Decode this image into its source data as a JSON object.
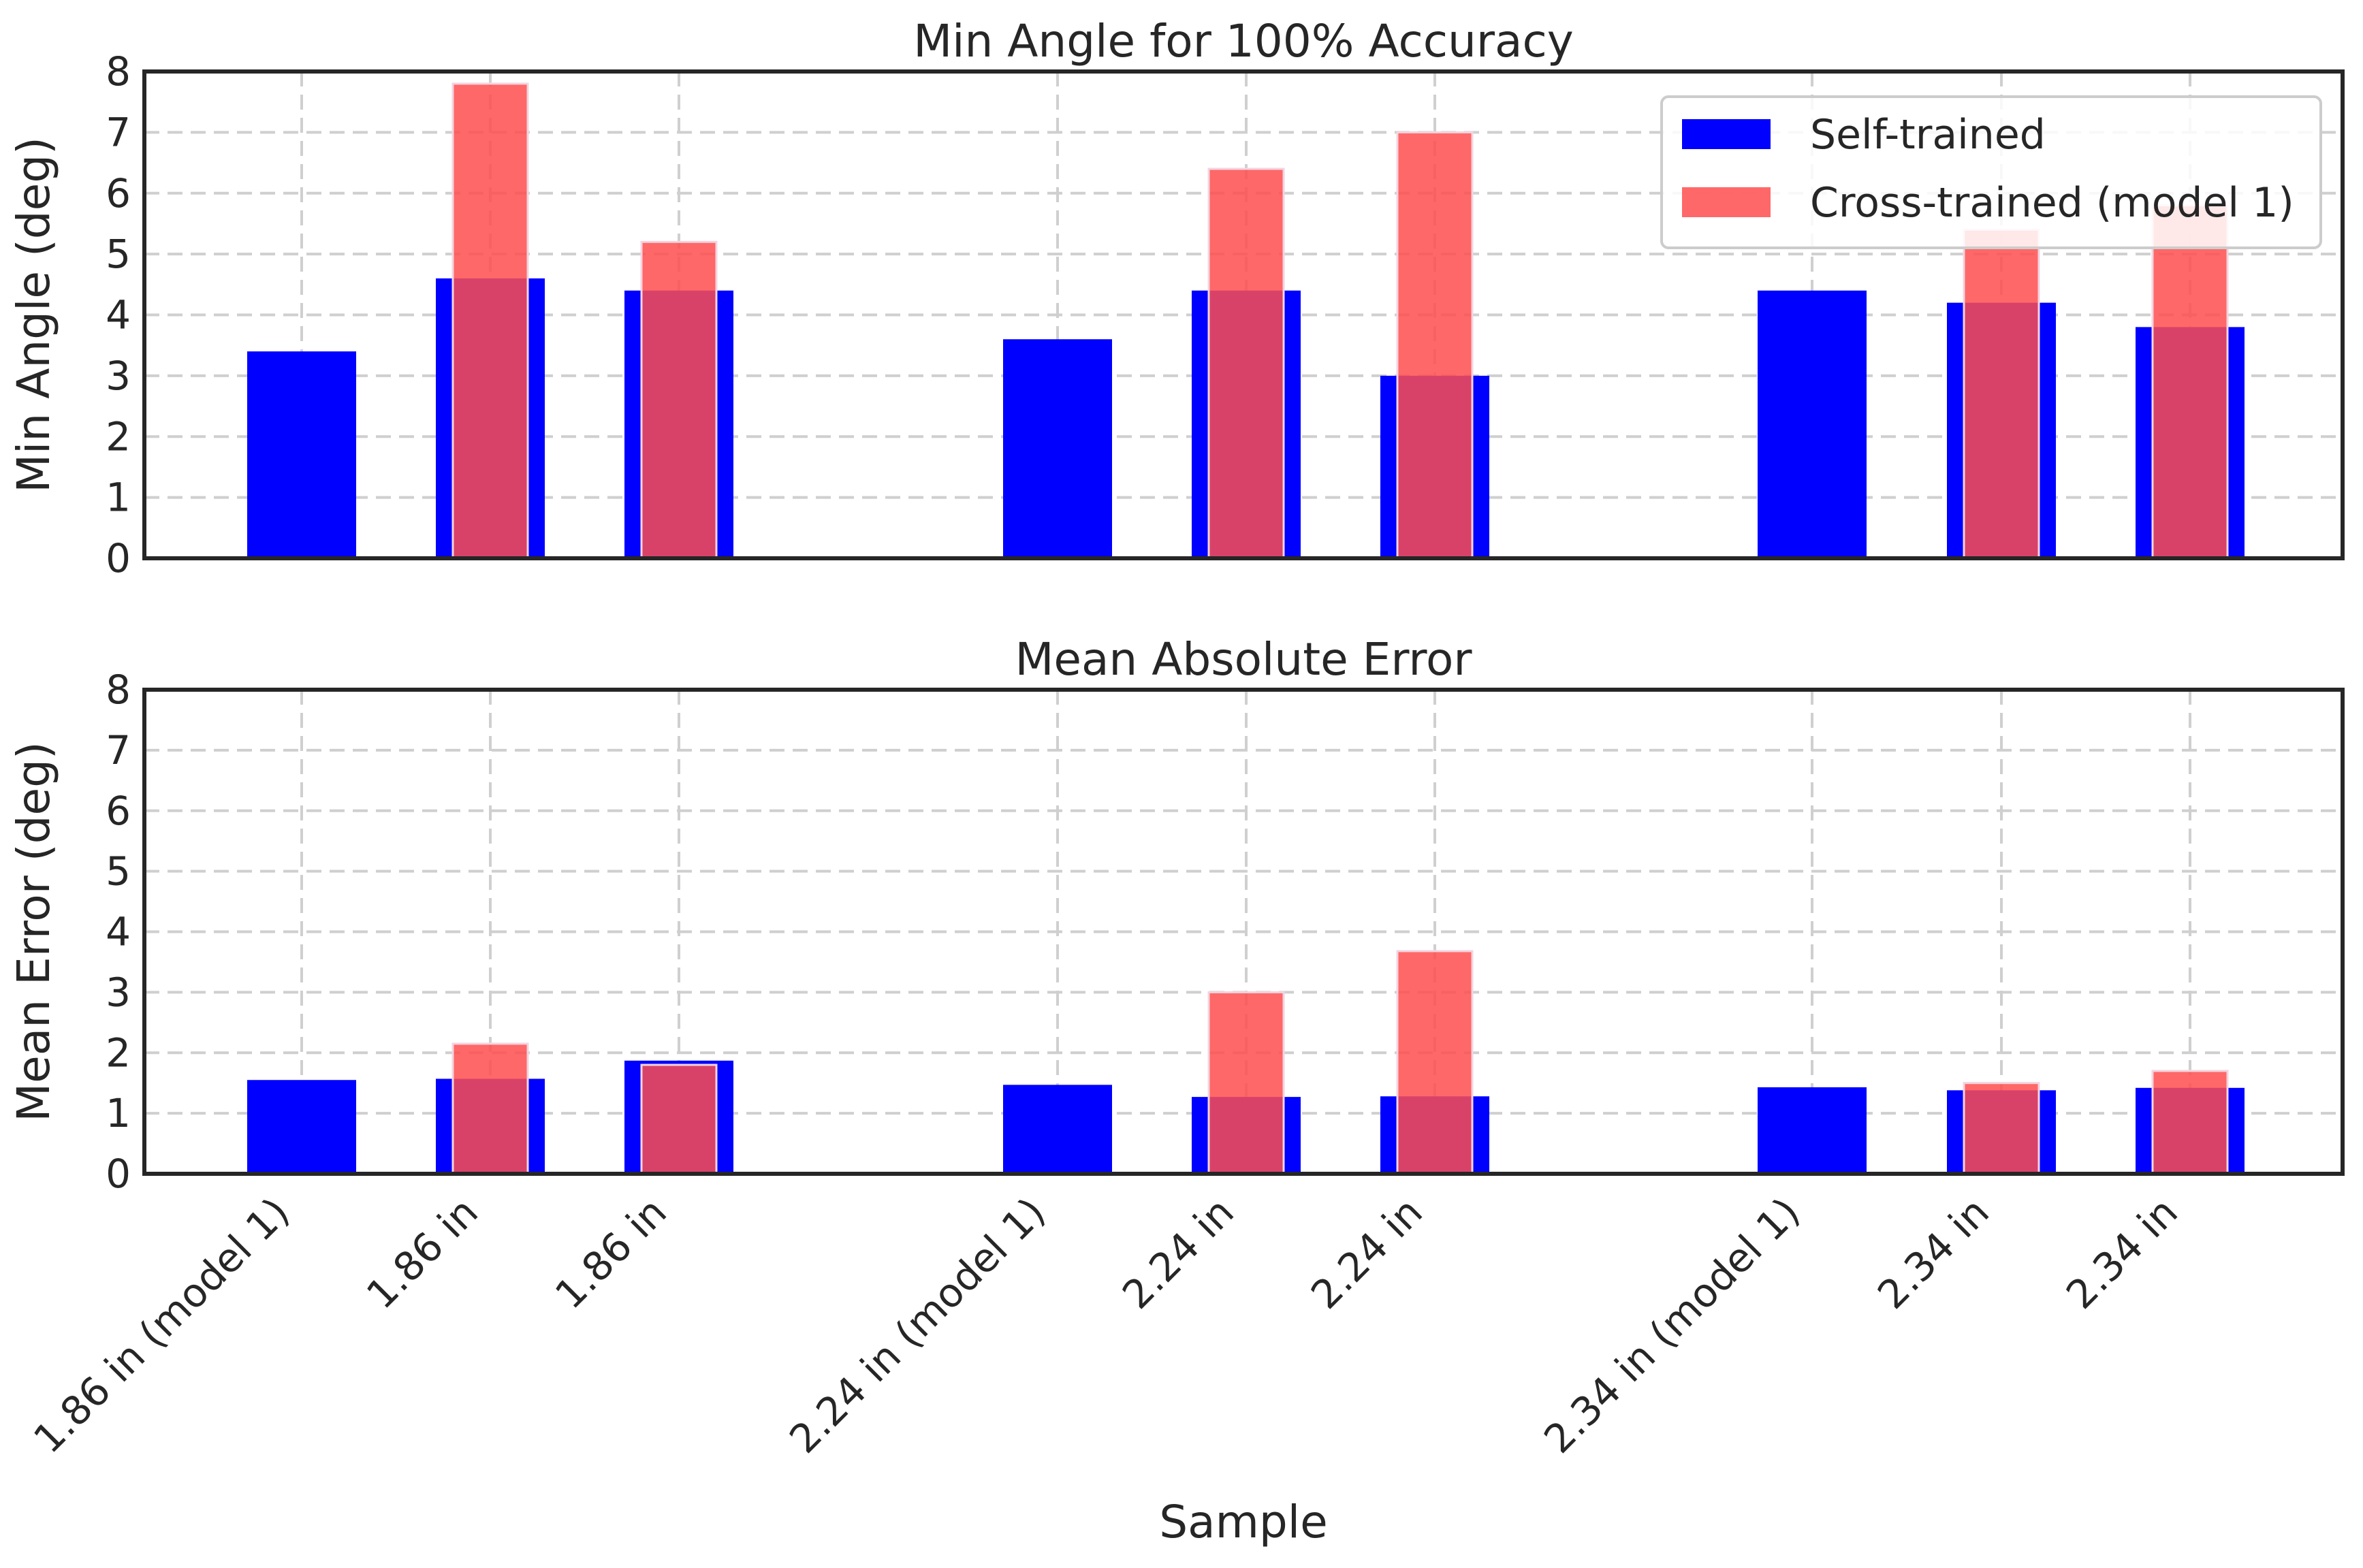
{
  "chart_data": [
    {
      "type": "bar",
      "title": "Min Angle for 100% Accuracy",
      "ylabel": "Min Angle (deg)",
      "xlabel": "",
      "ylim": [
        0,
        8
      ],
      "yticks": [
        "0",
        "1",
        "2",
        "3",
        "4",
        "5",
        "6",
        "7",
        "8"
      ],
      "grid": true,
      "legend_position": "top-right",
      "categories": [
        "1.86 in (model 1)",
        "1.86 in",
        "1.86 in",
        "2.24 in (model 1)",
        "2.24 in",
        "2.24 in",
        "2.34 in (model 1)",
        "2.34 in",
        "2.34 in"
      ],
      "series": [
        {
          "name": "Self-trained",
          "color": "#0000ff",
          "values": [
            3.4,
            4.6,
            4.4,
            3.6,
            4.4,
            3.0,
            4.4,
            4.2,
            3.8
          ]
        },
        {
          "name": "Cross-trained (model 1)",
          "color": "#ff4d4d",
          "values": [
            null,
            7.8,
            5.2,
            null,
            6.4,
            7.0,
            null,
            5.4,
            5.8
          ]
        }
      ]
    },
    {
      "type": "bar",
      "title": "Mean Absolute Error",
      "ylabel": "Mean Error (deg)",
      "xlabel": "Sample",
      "ylim": [
        0,
        8
      ],
      "yticks": [
        "0",
        "1",
        "2",
        "3",
        "4",
        "5",
        "6",
        "7",
        "8"
      ],
      "grid": true,
      "categories": [
        "1.86 in (model 1)",
        "1.86 in",
        "1.86 in",
        "2.24 in (model 1)",
        "2.24 in",
        "2.24 in",
        "2.34 in (model 1)",
        "2.34 in",
        "2.34 in"
      ],
      "series": [
        {
          "name": "Self-trained",
          "color": "#0000ff",
          "values": [
            1.55,
            1.57,
            1.87,
            1.47,
            1.27,
            1.28,
            1.43,
            1.38,
            1.42
          ]
        },
        {
          "name": "Cross-trained (model 1)",
          "color": "#ff4d4d",
          "values": [
            null,
            2.15,
            1.8,
            null,
            3.0,
            3.68,
            null,
            1.5,
            1.7
          ]
        }
      ]
    }
  ]
}
